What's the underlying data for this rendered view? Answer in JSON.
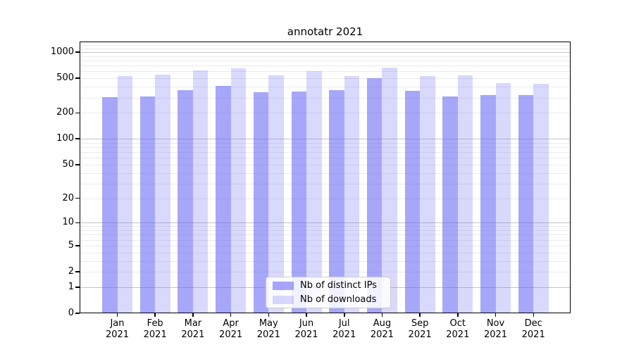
{
  "title": "annotatr 2021",
  "legend": {
    "items": [
      {
        "label": "Nb of distinct IPs",
        "swatch": "dark-periwinkle"
      },
      {
        "label": "Nb of downloads",
        "swatch": "light-periwinkle"
      }
    ]
  },
  "chart_data": {
    "type": "bar",
    "title": "annotatr 2021",
    "xlabel": "",
    "ylabel": "",
    "categories": [
      "Jan 2021",
      "Feb 2021",
      "Mar 2021",
      "Apr 2021",
      "May 2021",
      "Jun 2021",
      "Jul 2021",
      "Aug 2021",
      "Sep 2021",
      "Oct 2021",
      "Nov 2021",
      "Dec 2021"
    ],
    "series": [
      {
        "name": "Nb of distinct IPs",
        "values": [
          305,
          310,
          365,
          410,
          345,
          350,
          365,
          500,
          360,
          310,
          320,
          320
        ]
      },
      {
        "name": "Nb of downloads",
        "values": [
          530,
          550,
          620,
          655,
          545,
          600,
          530,
          670,
          535,
          545,
          440,
          430
        ]
      }
    ],
    "y_scale": "log1p",
    "y_ticks": [
      0,
      1,
      2,
      5,
      10,
      20,
      50,
      100,
      200,
      500,
      1000
    ],
    "ylim": [
      0,
      1320
    ],
    "grid": "on",
    "legend_position": "lower center",
    "colors": {
      "bar_distinct_ips": "rgba(95,95,245,0.55)",
      "bar_downloads": "rgba(95,95,245,0.24)"
    }
  }
}
